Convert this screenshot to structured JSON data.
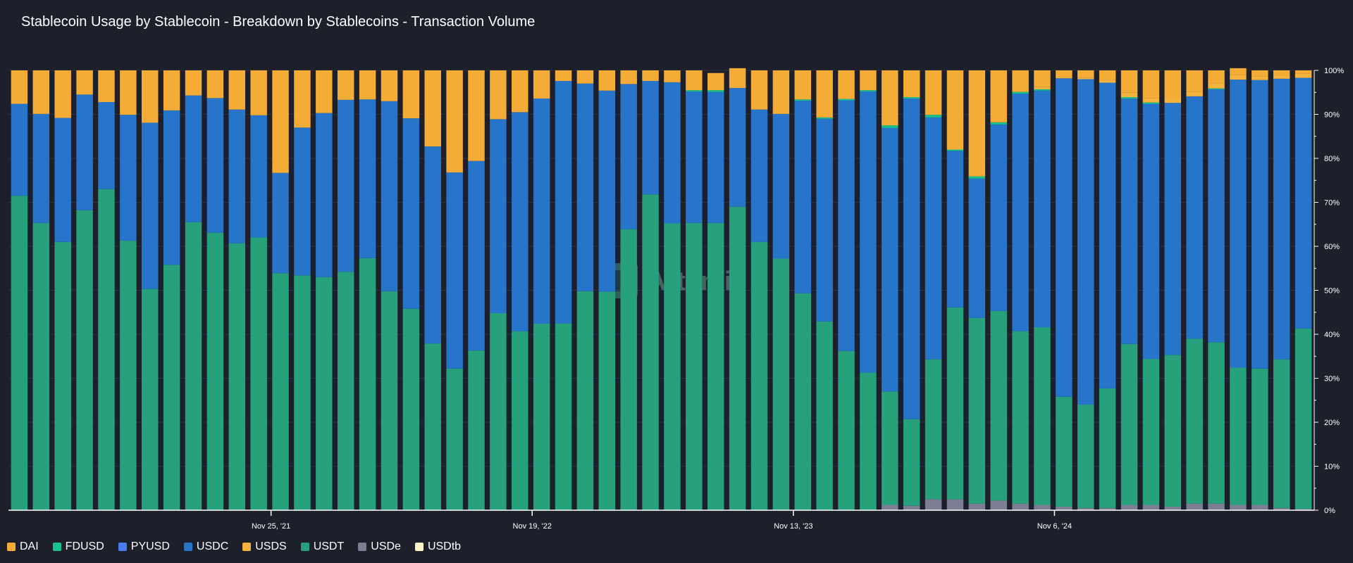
{
  "chart_data": {
    "type": "bar",
    "stacked": true,
    "title": "Stablecoin Usage by Stablecoin - Breakdown by Stablecoins - Transaction Volume",
    "xlabel": "",
    "ylabel": "",
    "ylim": [
      0,
      100
    ],
    "y_ticks": [
      "0%",
      "10%",
      "20%",
      "30%",
      "40%",
      "50%",
      "60%",
      "70%",
      "80%",
      "90%",
      "100%"
    ],
    "x_tick_labels": [
      {
        "label": "Nov 25, '21",
        "bar_index": 12
      },
      {
        "label": "Nov 19, '22",
        "bar_index": 24
      },
      {
        "label": "Nov 13, '23",
        "bar_index": 36
      },
      {
        "label": "Nov 6, '24",
        "bar_index": 48
      }
    ],
    "legend_position": "bottom-left",
    "grid": true,
    "watermark": "Artemis",
    "series": [
      {
        "name": "USDe",
        "color": "#7c7f93",
        "values": [
          0,
          0,
          0,
          0,
          0,
          0,
          0,
          0,
          0,
          0,
          0,
          0,
          0,
          0,
          0,
          0,
          0,
          0,
          0,
          0,
          0,
          0,
          0,
          0,
          0,
          0,
          0,
          0,
          0,
          0,
          0,
          0,
          0,
          0,
          0,
          0,
          0,
          0,
          0,
          0,
          1.2,
          1,
          2.5,
          2.5,
          1.5,
          2.2,
          1.5,
          1.2,
          0.8,
          0.5,
          0.5,
          1.2,
          1.2,
          0.8,
          1.5,
          1.5,
          1.2,
          1.2,
          0.5,
          0.3
        ]
      },
      {
        "name": "USDT",
        "color": "#26a17b",
        "values": [
          71.5,
          65.3,
          61,
          68.2,
          73,
          61.3,
          50.3,
          55.8,
          65.5,
          63.1,
          60.7,
          62,
          53.9,
          53.4,
          53,
          54.2,
          57.3,
          49.8,
          45.8,
          37.9,
          32.2,
          36.3,
          44.8,
          40.7,
          42.4,
          42.5,
          49.8,
          49.7,
          63.9,
          71.8,
          65.2,
          65.3,
          65.3,
          69,
          61,
          57.2,
          49.3,
          42.9,
          36.2,
          31.3,
          25.8,
          19.7,
          31.8,
          43.6,
          42.2,
          43.1,
          39.2,
          40.4,
          25,
          23.5,
          27.2,
          36.6,
          33.2,
          34.5,
          37.5,
          36.7,
          31.2,
          31,
          33.8,
          41
        ]
      },
      {
        "name": "USDC",
        "color": "#2775ca",
        "values": [
          20.9,
          24.8,
          28.2,
          26.3,
          19.8,
          28.6,
          37.8,
          35.1,
          28.8,
          30.6,
          30.4,
          27.8,
          22.8,
          33.6,
          37.3,
          39.1,
          36.1,
          43.2,
          43.3,
          44.8,
          44.6,
          43.1,
          44.1,
          49.8,
          51.2,
          55.1,
          47.2,
          45.7,
          33,
          25.8,
          32.1,
          29.9,
          29.8,
          27,
          30.1,
          32.9,
          43.8,
          46.1,
          57,
          63.9,
          59.9,
          72.9,
          55,
          35.6,
          31.7,
          42.4,
          54,
          53.8,
          72.4,
          74,
          69.5,
          55.8,
          58,
          57.3,
          55.1,
          57.5,
          65.5,
          65.6,
          63.8,
          57
        ]
      },
      {
        "name": "PYUSD",
        "color": "#4a7cf0",
        "values": [
          0,
          0,
          0,
          0,
          0,
          0,
          0,
          0,
          0,
          0,
          0,
          0,
          0,
          0,
          0,
          0,
          0,
          0,
          0,
          0,
          0,
          0,
          0,
          0,
          0,
          0,
          0,
          0,
          0,
          0,
          0,
          0,
          0,
          0,
          0,
          0,
          0,
          0,
          0,
          0,
          0,
          0,
          0,
          0,
          0,
          0,
          0,
          0,
          0,
          0,
          0,
          0,
          0,
          0,
          0,
          0,
          0,
          0,
          0,
          0
        ]
      },
      {
        "name": "FDUSD",
        "color": "#14c38e",
        "values": [
          0,
          0,
          0,
          0,
          0,
          0,
          0,
          0,
          0,
          0,
          0,
          0,
          0,
          0,
          0,
          0,
          0,
          0,
          0,
          0,
          0,
          0,
          0,
          0,
          0,
          0,
          0,
          0,
          0,
          0,
          0,
          0.3,
          0.4,
          0,
          0,
          0,
          0.3,
          0.3,
          0.3,
          0.3,
          0.6,
          0.3,
          0.6,
          0.3,
          0.5,
          0.5,
          0.4,
          0.3,
          0,
          0,
          0,
          0.3,
          0.3,
          0,
          0,
          0.2,
          0,
          0,
          0,
          0
        ]
      },
      {
        "name": "USDS",
        "color": "#f4b23f",
        "values": [
          0,
          0,
          0,
          0,
          0,
          0,
          0,
          0,
          0,
          0,
          0,
          0,
          0,
          0,
          0,
          0,
          0,
          0,
          0,
          0,
          0,
          0,
          0,
          0,
          0,
          0,
          0,
          0,
          0,
          0,
          0,
          0,
          0,
          0,
          0,
          0,
          0,
          0,
          0,
          0,
          0,
          0,
          0,
          0,
          0,
          0,
          0,
          0.5,
          0.3,
          0.3,
          0.7,
          1,
          1,
          1,
          1,
          1.2,
          1,
          0.9,
          0.7,
          1
        ]
      },
      {
        "name": "USDtb",
        "color": "#fdf3c4",
        "values": [
          0,
          0,
          0,
          0,
          0,
          0,
          0,
          0,
          0,
          0,
          0,
          0,
          0,
          0,
          0,
          0,
          0,
          0,
          0,
          0,
          0,
          0,
          0,
          0,
          0,
          0,
          0,
          0,
          0,
          0,
          0,
          0,
          0,
          0,
          0,
          0,
          0,
          0,
          0,
          0,
          0,
          0,
          0,
          0,
          0,
          0,
          0,
          0,
          0,
          0,
          0,
          0,
          0,
          0,
          0,
          0,
          0,
          0,
          0,
          0
        ]
      },
      {
        "name": "DAI",
        "color": "#f5ac37",
        "values": [
          7.6,
          9.9,
          10.8,
          5.5,
          7.2,
          10.1,
          11.9,
          9.1,
          5.7,
          6.3,
          8.9,
          10.2,
          23.3,
          13,
          9.7,
          6.7,
          6.6,
          7,
          10.9,
          17.3,
          23.2,
          20.6,
          11.1,
          9.5,
          6.4,
          2.4,
          3,
          4.6,
          3.1,
          2.4,
          2.7,
          4.5,
          3.9,
          4.5,
          8.9,
          9.9,
          6.6,
          10.7,
          6.5,
          4.5,
          12.5,
          6.1,
          10.1,
          18,
          24.1,
          11.8,
          4.9,
          3.8,
          1.5,
          1.7,
          2.1,
          5.1,
          6.3,
          6.4,
          4.9,
          2.9,
          1.6,
          1.3,
          1.2,
          0.7
        ]
      }
    ]
  },
  "legend": [
    {
      "name": "DAI",
      "color": "#f5ac37"
    },
    {
      "name": "FDUSD",
      "color": "#14c38e"
    },
    {
      "name": "PYUSD",
      "color": "#4a7cf0"
    },
    {
      "name": "USDC",
      "color": "#2775ca"
    },
    {
      "name": "USDS",
      "color": "#f4b23f"
    },
    {
      "name": "USDT",
      "color": "#26a17b"
    },
    {
      "name": "USDe",
      "color": "#7c7f93"
    },
    {
      "name": "USDtb",
      "color": "#fdf3c4"
    }
  ]
}
